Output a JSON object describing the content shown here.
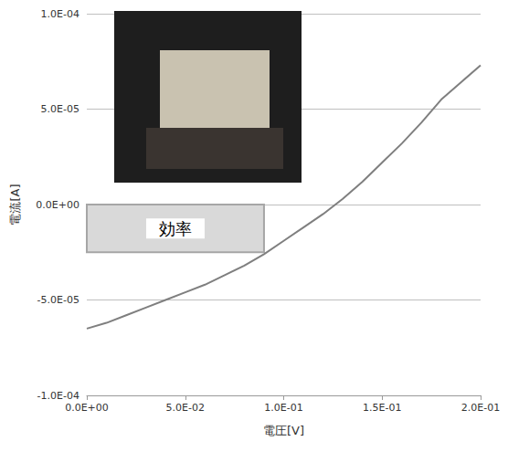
{
  "chart_data": {
    "type": "line",
    "x_label": "電圧[V]",
    "y_label": "電流[A]",
    "color": "#7f7f7f",
    "grid": true,
    "x": [
      0,
      0.01,
      0.02,
      0.03,
      0.04,
      0.05,
      0.06,
      0.07,
      0.08,
      0.09,
      0.1,
      0.11,
      0.12,
      0.13,
      0.14,
      0.15,
      0.16,
      0.17,
      0.18,
      0.19,
      0.2
    ],
    "values": [
      -6.5e-05,
      -6.2e-05,
      -5.8e-05,
      -5.4e-05,
      -5e-05,
      -4.6e-05,
      -4.2e-05,
      -3.7e-05,
      -3.2e-05,
      -2.6e-05,
      -1.9e-05,
      -1.2e-05,
      -5e-06,
      3e-06,
      1.2e-05,
      2.2e-05,
      3.2e-05,
      4.3e-05,
      5.5e-05,
      6.4e-05,
      7.3e-05
    ],
    "xlim": [
      0,
      0.2
    ],
    "xticks": [
      {
        "value": 0,
        "label": "0.0E+00"
      },
      {
        "value": 0.05,
        "label": "5.0E-02"
      },
      {
        "value": 0.1,
        "label": "1.0E-01"
      },
      {
        "value": 0.15,
        "label": "1.5E-01"
      },
      {
        "value": 0.2,
        "label": "2.0E-01"
      }
    ],
    "ylim": [
      -0.0001,
      0.0001
    ],
    "yticks": [
      {
        "value": -0.0001,
        "label": "-1.0E-04"
      },
      {
        "value": -5e-05,
        "label": "-5.0E-05"
      },
      {
        "value": 0,
        "label": "0.0E+00"
      },
      {
        "value": 5e-05,
        "label": "5.0E-05"
      },
      {
        "value": 0.0001,
        "label": "1.0E-04"
      }
    ],
    "annotations": [
      {
        "text": "効率",
        "x": [
          0,
          0.09
        ],
        "y": [
          0,
          -2.5e-05
        ]
      }
    ]
  }
}
